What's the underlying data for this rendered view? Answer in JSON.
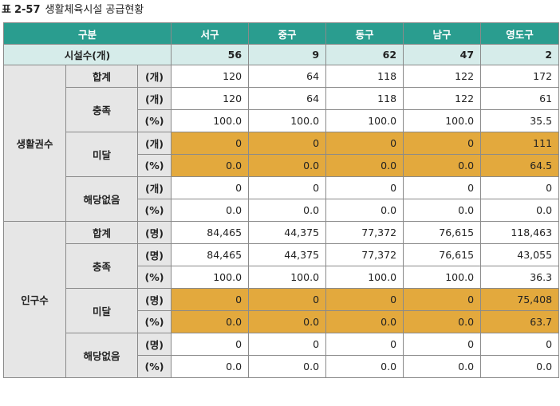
{
  "title": {
    "prefix": "표",
    "number": "2-57",
    "text": "생활체육시설  공급현황"
  },
  "header": {
    "label": "구분",
    "districts": [
      "서구",
      "중구",
      "동구",
      "남구",
      "영도구"
    ]
  },
  "facility_row": {
    "label": "시설수(개)",
    "values": [
      "56",
      "9",
      "62",
      "47",
      "2"
    ]
  },
  "groups": {
    "living": {
      "label": "생활권수",
      "total": {
        "label": "합계",
        "unit": "(개)",
        "values": [
          "120",
          "64",
          "118",
          "122",
          "172"
        ]
      },
      "met": {
        "label": "충족",
        "rows": [
          {
            "unit": "(개)",
            "values": [
              "120",
              "64",
              "118",
              "122",
              "61"
            ]
          },
          {
            "unit": "(%)",
            "values": [
              "100.0",
              "100.0",
              "100.0",
              "100.0",
              "35.5"
            ]
          }
        ]
      },
      "unmet": {
        "label": "미달",
        "rows": [
          {
            "unit": "(개)",
            "values": [
              "0",
              "0",
              "0",
              "0",
              "111"
            ]
          },
          {
            "unit": "(%)",
            "values": [
              "0.0",
              "0.0",
              "0.0",
              "0.0",
              "64.5"
            ]
          }
        ]
      },
      "na": {
        "label": "해당없음",
        "rows": [
          {
            "unit": "(개)",
            "values": [
              "0",
              "0",
              "0",
              "0",
              "0"
            ]
          },
          {
            "unit": "(%)",
            "values": [
              "0.0",
              "0.0",
              "0.0",
              "0.0",
              "0.0"
            ]
          }
        ]
      }
    },
    "population": {
      "label": "인구수",
      "total": {
        "label": "합계",
        "unit": "(명)",
        "values": [
          "84,465",
          "44,375",
          "77,372",
          "76,615",
          "118,463"
        ]
      },
      "met": {
        "label": "충족",
        "rows": [
          {
            "unit": "(명)",
            "values": [
              "84,465",
              "44,375",
              "77,372",
              "76,615",
              "43,055"
            ]
          },
          {
            "unit": "(%)",
            "values": [
              "100.0",
              "100.0",
              "100.0",
              "100.0",
              "36.3"
            ]
          }
        ]
      },
      "unmet": {
        "label": "미달",
        "rows": [
          {
            "unit": "(명)",
            "values": [
              "0",
              "0",
              "0",
              "0",
              "75,408"
            ]
          },
          {
            "unit": "(%)",
            "values": [
              "0.0",
              "0.0",
              "0.0",
              "0.0",
              "63.7"
            ]
          }
        ]
      },
      "na": {
        "label": "해당없음",
        "rows": [
          {
            "unit": "(명)",
            "values": [
              "0",
              "0",
              "0",
              "0",
              "0"
            ]
          },
          {
            "unit": "(%)",
            "values": [
              "0.0",
              "0.0",
              "0.0",
              "0.0",
              "0.0"
            ]
          }
        ]
      }
    }
  },
  "colors": {
    "header": "#2a9d8f",
    "subheader": "#d6ecea",
    "label_bg": "#e6e6e6",
    "highlight": "#e3a93d"
  }
}
